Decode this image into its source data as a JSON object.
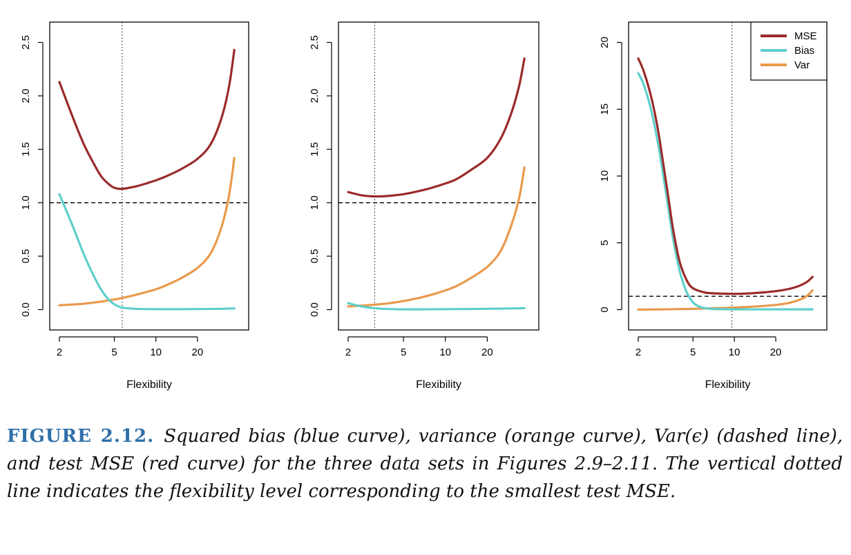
{
  "colors": {
    "mse": "#9b2a2a",
    "bias": "#5ecfcb",
    "var": "#e89a4c",
    "axis": "#000000"
  },
  "legend": {
    "placement": "top-right of third panel",
    "entries": [
      "MSE",
      "Bias",
      "Var"
    ]
  },
  "chart_data": [
    {
      "type": "line",
      "title": "",
      "xlabel": "Flexibility",
      "ylabel": "",
      "x_scale": "log",
      "x_ticks": [
        2,
        5,
        10,
        20
      ],
      "x_tick_labels": [
        "2",
        "5",
        "10",
        "20"
      ],
      "xlim": [
        2,
        40
      ],
      "y_ticks": [
        0.0,
        0.5,
        1.0,
        1.5,
        2.0,
        2.5
      ],
      "y_tick_labels": [
        "0.0",
        "0.5",
        "1.0",
        "1.5",
        "2.0",
        "2.5"
      ],
      "ylim": [
        -0.1,
        2.6
      ],
      "dashed_hline": 1.0,
      "dotted_vline": 5.7,
      "series": [
        {
          "name": "MSE",
          "x": [
            2,
            2.5,
            3,
            3.5,
            4,
            4.5,
            5,
            5.7,
            7,
            8,
            10,
            12,
            15,
            20,
            25,
            30,
            34,
            37
          ],
          "y": [
            2.13,
            1.8,
            1.55,
            1.38,
            1.25,
            1.18,
            1.14,
            1.13,
            1.15,
            1.17,
            1.21,
            1.25,
            1.31,
            1.41,
            1.55,
            1.8,
            2.1,
            2.43
          ]
        },
        {
          "name": "Bias",
          "x": [
            2,
            2.5,
            3,
            3.5,
            4,
            4.5,
            5,
            5.5,
            6,
            7,
            8,
            10,
            15,
            20,
            30,
            37
          ],
          "y": [
            1.08,
            0.78,
            0.52,
            0.33,
            0.19,
            0.1,
            0.05,
            0.025,
            0.015,
            0.008,
            0.005,
            0.004,
            0.004,
            0.005,
            0.008,
            0.012
          ]
        },
        {
          "name": "Var",
          "x": [
            2,
            3,
            4,
            5,
            6,
            7,
            8,
            10,
            12,
            15,
            20,
            25,
            30,
            34,
            37
          ],
          "y": [
            0.04,
            0.055,
            0.075,
            0.095,
            0.115,
            0.135,
            0.155,
            0.19,
            0.23,
            0.29,
            0.39,
            0.53,
            0.78,
            1.08,
            1.42
          ]
        }
      ]
    },
    {
      "type": "line",
      "title": "",
      "xlabel": "Flexibility",
      "ylabel": "",
      "x_scale": "log",
      "x_ticks": [
        2,
        5,
        10,
        20
      ],
      "x_tick_labels": [
        "2",
        "5",
        "10",
        "20"
      ],
      "xlim": [
        2,
        40
      ],
      "y_ticks": [
        0.0,
        0.5,
        1.0,
        1.5,
        2.0,
        2.5
      ],
      "y_tick_labels": [
        "0.0",
        "0.5",
        "1.0",
        "1.5",
        "2.0",
        "2.5"
      ],
      "ylim": [
        -0.1,
        2.6
      ],
      "dashed_hline": 1.0,
      "dotted_vline": 3.1,
      "series": [
        {
          "name": "MSE",
          "x": [
            2,
            2.5,
            3,
            3.5,
            4,
            5,
            6,
            7,
            8,
            10,
            12,
            15,
            20,
            25,
            30,
            34,
            37
          ],
          "y": [
            1.1,
            1.07,
            1.06,
            1.06,
            1.065,
            1.08,
            1.1,
            1.12,
            1.14,
            1.18,
            1.22,
            1.3,
            1.42,
            1.6,
            1.85,
            2.1,
            2.35
          ]
        },
        {
          "name": "Bias",
          "x": [
            2,
            2.5,
            3,
            3.5,
            4,
            5,
            7,
            10,
            15,
            20,
            30,
            37
          ],
          "y": [
            0.06,
            0.03,
            0.015,
            0.008,
            0.005,
            0.003,
            0.003,
            0.004,
            0.006,
            0.008,
            0.011,
            0.014
          ]
        },
        {
          "name": "Var",
          "x": [
            2,
            3,
            4,
            5,
            6,
            7,
            8,
            10,
            12,
            15,
            20,
            25,
            30,
            34,
            37
          ],
          "y": [
            0.03,
            0.045,
            0.06,
            0.08,
            0.1,
            0.12,
            0.14,
            0.18,
            0.22,
            0.29,
            0.4,
            0.55,
            0.8,
            1.05,
            1.33
          ]
        }
      ]
    },
    {
      "type": "line",
      "title": "",
      "xlabel": "Flexibility",
      "ylabel": "",
      "x_scale": "log",
      "x_ticks": [
        2,
        5,
        10,
        20
      ],
      "x_tick_labels": [
        "2",
        "5",
        "10",
        "20"
      ],
      "xlim": [
        2,
        40
      ],
      "y_ticks": [
        0,
        5,
        10,
        15,
        20
      ],
      "y_tick_labels": [
        "0",
        "5",
        "10",
        "15",
        "20"
      ],
      "ylim": [
        -0.8,
        20.8
      ],
      "dashed_hline": 1.0,
      "dotted_vline": 9.6,
      "series": [
        {
          "name": "MSE",
          "x": [
            2,
            2.2,
            2.5,
            2.8,
            3,
            3.3,
            3.6,
            4,
            4.5,
            5,
            6,
            7,
            8,
            10,
            12,
            15,
            20,
            25,
            30,
            34,
            37
          ],
          "y": [
            18.8,
            17.8,
            15.8,
            13.3,
            11.3,
            8.5,
            5.9,
            3.6,
            2.2,
            1.6,
            1.3,
            1.22,
            1.2,
            1.18,
            1.2,
            1.26,
            1.38,
            1.55,
            1.8,
            2.1,
            2.45
          ]
        },
        {
          "name": "Bias",
          "x": [
            2,
            2.2,
            2.5,
            2.8,
            3,
            3.3,
            3.6,
            4,
            4.5,
            5,
            5.5,
            6,
            7,
            8,
            10,
            15,
            20,
            30,
            37
          ],
          "y": [
            17.7,
            16.8,
            14.8,
            12.3,
            10.4,
            7.7,
            5.2,
            2.9,
            1.3,
            0.55,
            0.25,
            0.12,
            0.05,
            0.03,
            0.02,
            0.02,
            0.02,
            0.02,
            0.02
          ]
        },
        {
          "name": "Var",
          "x": [
            2,
            3,
            4,
            5,
            7,
            10,
            15,
            20,
            25,
            30,
            34,
            37
          ],
          "y": [
            0.0,
            0.02,
            0.04,
            0.06,
            0.1,
            0.15,
            0.25,
            0.35,
            0.5,
            0.75,
            1.05,
            1.45
          ]
        }
      ]
    }
  ],
  "caption": {
    "label": "FIGURE 2.12.",
    "text": "Squared bias (blue curve), variance (orange curve), Var(ϵ) (dashed line), and test MSE (red curve) for the three data sets in Figures 2.9–2.11. The vertical dotted line indicates the flexibility level corresponding to the smallest test MSE."
  }
}
